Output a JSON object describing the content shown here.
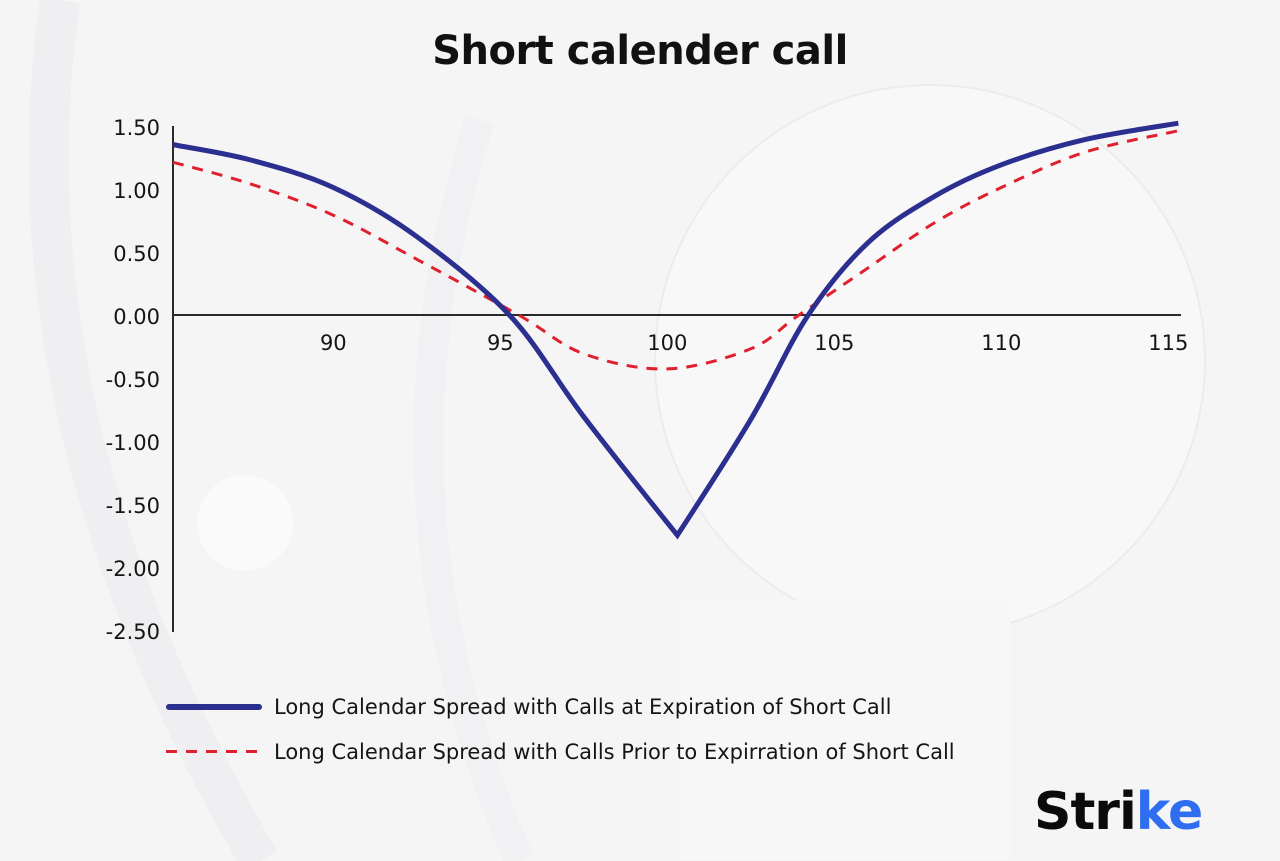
{
  "title": "Short calender call",
  "colors": {
    "series_solid": "#2b2f8f",
    "series_dashed": "#e0202e",
    "axis": "#2a2a2a",
    "background": "#f5f5f6",
    "logo_accent": "#2f6ef0"
  },
  "legend": [
    {
      "label": "Long Calendar Spread with Calls at Expiration of Short Call",
      "style": "solid"
    },
    {
      "label": "Long Calendar Spread with Calls Prior to Expirration of Short Call",
      "style": "dashed"
    }
  ],
  "logo": {
    "text_main": "Stri",
    "text_accent": "ke"
  },
  "chart_data": {
    "type": "line",
    "title": "Short calender call",
    "xlabel": "",
    "ylabel": "",
    "xlim": [
      85,
      115.3
    ],
    "ylim": [
      -2.5,
      1.5
    ],
    "x_ticks": [
      "90",
      "95",
      "100",
      "105",
      "110",
      "115"
    ],
    "y_ticks": [
      "1.50",
      "1.00",
      "0.50",
      "0.00",
      "-0.50",
      "-1.00",
      "-1.50",
      "-2.00",
      "-2.50"
    ],
    "grid": false,
    "legend_position": "bottom",
    "series": [
      {
        "name": "Long Calendar Spread with Calls at Expiration of Short Call",
        "style": "solid",
        "x": [
          85.2,
          87.5,
          90,
          92.5,
          95.3,
          97.5,
          100.3,
          102.5,
          104.2,
          106,
          108,
          110,
          112.5,
          115.3
        ],
        "y": [
          1.36,
          1.24,
          1.02,
          0.63,
          0.0,
          -0.8,
          -1.74,
          -0.82,
          0.0,
          0.58,
          0.95,
          1.2,
          1.4,
          1.53
        ]
      },
      {
        "name": "Long Calendar Spread with Calls Prior to Expirration of Short Call",
        "style": "dashed",
        "x": [
          85.2,
          87.5,
          90,
          92.5,
          95.6,
          97.5,
          100,
          102.5,
          103.9,
          106,
          108,
          110,
          112.5,
          115.3
        ],
        "y": [
          1.22,
          1.05,
          0.8,
          0.45,
          0.0,
          -0.3,
          -0.42,
          -0.26,
          0.0,
          0.38,
          0.74,
          1.02,
          1.3,
          1.47
        ]
      }
    ]
  }
}
